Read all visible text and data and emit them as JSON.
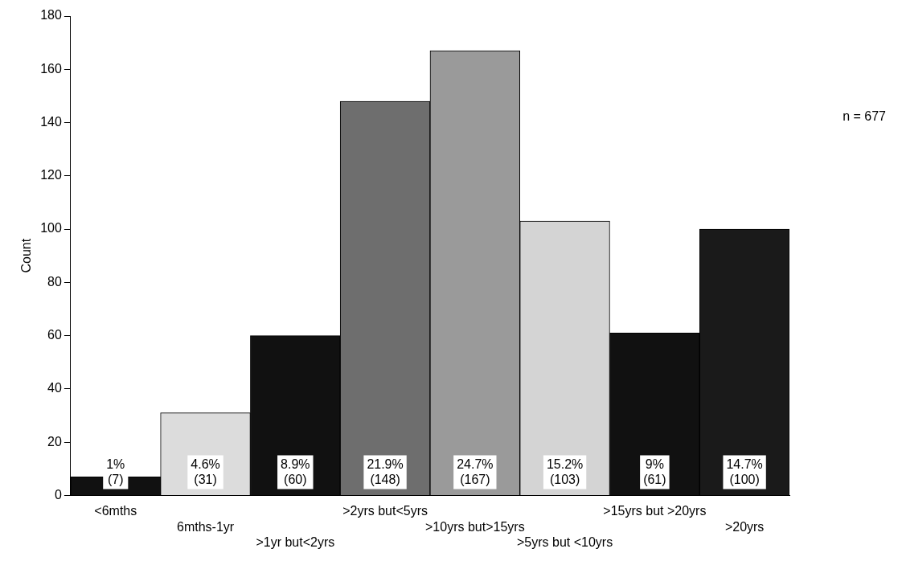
{
  "chart_data": {
    "type": "bar",
    "ylabel": "Count",
    "categories": [
      "<6mths",
      "6mths-1yr",
      ">1yr but<2yrs",
      ">2yrs but<5yrs",
      ">10yrs but>15yrs",
      ">5yrs but <10yrs",
      ">15yrs but >20yrs",
      ">20yrs"
    ],
    "values": [
      7,
      31,
      60,
      148,
      167,
      103,
      61,
      100
    ],
    "colors": [
      "#111111",
      "#dcdcdc",
      "#111111",
      "#6e6e6e",
      "#9a9a9a",
      "#d4d4d4",
      "#111111",
      "#1a1a1a"
    ],
    "value_labels": [
      "1%\n(7)",
      "4.6%\n(31)",
      "8.9%\n(60)",
      "21.9%\n(148)",
      "24.7%\n(167)",
      "15.2%\n(103)",
      "9%\n(61)",
      "14.7%\n(100)"
    ],
    "ylim": [
      0,
      180
    ],
    "yticks": [
      0,
      20,
      40,
      60,
      80,
      100,
      120,
      140,
      160,
      180
    ],
    "grid": false,
    "legend": false,
    "annotations": [
      "n = 677"
    ]
  }
}
